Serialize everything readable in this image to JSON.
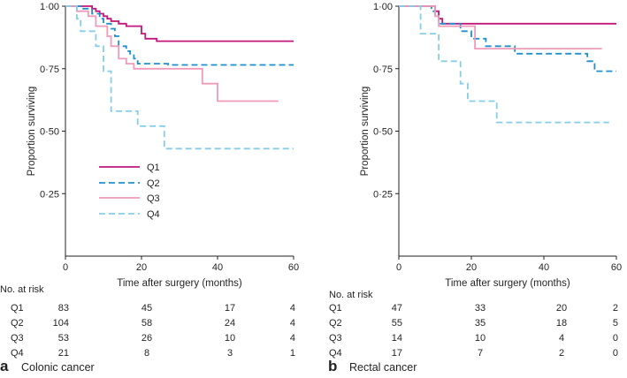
{
  "chart_data": [
    {
      "type": "line",
      "subtype": "kaplan-meier",
      "panel_letter": "a",
      "caption": "Colonic cancer",
      "xlabel": "Time after surgery (months)",
      "ylabel": "Proportion surviving",
      "xlim": [
        0,
        60
      ],
      "ylim": [
        0,
        1
      ],
      "xticks": [
        0,
        20,
        40,
        60
      ],
      "x_tick_labels": [
        "0",
        "20",
        "40",
        "60"
      ],
      "yticks": [
        0.25,
        0.5,
        0.75,
        1.0
      ],
      "y_tick_labels": [
        "0·25",
        "0·50",
        "0·75",
        "1·00"
      ],
      "legend": {
        "position": "left-center",
        "entries": [
          "Q1",
          "Q2",
          "Q3",
          "Q4"
        ]
      },
      "series": [
        {
          "name": "Q1",
          "color": "#c2167b",
          "dash": "solid",
          "points": [
            [
              0,
              1
            ],
            [
              7,
              1
            ],
            [
              7,
              0.99
            ],
            [
              8,
              0.99
            ],
            [
              8,
              0.98
            ],
            [
              9,
              0.98
            ],
            [
              9,
              0.97
            ],
            [
              10,
              0.97
            ],
            [
              10,
              0.96
            ],
            [
              11,
              0.96
            ],
            [
              11,
              0.95
            ],
            [
              12,
              0.95
            ],
            [
              12,
              0.94
            ],
            [
              14,
              0.94
            ],
            [
              14,
              0.93
            ],
            [
              16,
              0.93
            ],
            [
              16,
              0.92
            ],
            [
              20,
              0.92
            ],
            [
              20,
              0.89
            ],
            [
              21,
              0.89
            ],
            [
              21,
              0.87
            ],
            [
              24,
              0.87
            ],
            [
              24,
              0.86
            ],
            [
              60,
              0.86
            ]
          ]
        },
        {
          "name": "Q2",
          "color": "#1e90d0",
          "dash": "dashed",
          "points": [
            [
              0,
              1
            ],
            [
              4,
              1
            ],
            [
              4,
              0.99
            ],
            [
              7,
              0.99
            ],
            [
              7,
              0.97
            ],
            [
              9,
              0.97
            ],
            [
              9,
              0.95
            ],
            [
              10,
              0.95
            ],
            [
              10,
              0.93
            ],
            [
              12,
              0.93
            ],
            [
              12,
              0.91
            ],
            [
              13,
              0.91
            ],
            [
              13,
              0.88
            ],
            [
              14,
              0.88
            ],
            [
              14,
              0.84
            ],
            [
              16,
              0.84
            ],
            [
              16,
              0.82
            ],
            [
              17,
              0.82
            ],
            [
              17,
              0.81
            ],
            [
              18,
              0.81
            ],
            [
              18,
              0.79
            ],
            [
              19,
              0.79
            ],
            [
              19,
              0.77
            ],
            [
              27,
              0.77
            ],
            [
              27,
              0.765
            ],
            [
              60,
              0.765
            ]
          ]
        },
        {
          "name": "Q3",
          "color": "#ef9ab8",
          "dash": "solid",
          "points": [
            [
              0,
              1
            ],
            [
              3,
              1
            ],
            [
              3,
              0.98
            ],
            [
              6,
              0.98
            ],
            [
              6,
              0.96
            ],
            [
              8,
              0.96
            ],
            [
              8,
              0.92
            ],
            [
              11,
              0.92
            ],
            [
              11,
              0.88
            ],
            [
              12,
              0.88
            ],
            [
              12,
              0.84
            ],
            [
              14,
              0.84
            ],
            [
              14,
              0.79
            ],
            [
              16,
              0.79
            ],
            [
              16,
              0.77
            ],
            [
              18,
              0.77
            ],
            [
              18,
              0.75
            ],
            [
              36,
              0.75
            ],
            [
              36,
              0.69
            ],
            [
              40,
              0.69
            ],
            [
              40,
              0.62
            ],
            [
              56,
              0.62
            ]
          ]
        },
        {
          "name": "Q4",
          "color": "#86cde8",
          "dash": "dashed",
          "points": [
            [
              0,
              1
            ],
            [
              3,
              1
            ],
            [
              3,
              0.95
            ],
            [
              4,
              0.95
            ],
            [
              4,
              0.9
            ],
            [
              8,
              0.9
            ],
            [
              8,
              0.84
            ],
            [
              10,
              0.84
            ],
            [
              10,
              0.74
            ],
            [
              12,
              0.74
            ],
            [
              12,
              0.58
            ],
            [
              19,
              0.58
            ],
            [
              19,
              0.52
            ],
            [
              26,
              0.52
            ],
            [
              26,
              0.43
            ],
            [
              60,
              0.43
            ]
          ]
        }
      ],
      "at_risk": {
        "title": "No. at risk",
        "times": [
          0,
          20,
          40,
          60
        ],
        "rows": [
          {
            "label": "Q1",
            "counts": [
              "83",
              "45",
              "17",
              "4"
            ]
          },
          {
            "label": "Q2",
            "counts": [
              "104",
              "58",
              "24",
              "4"
            ]
          },
          {
            "label": "Q3",
            "counts": [
              "53",
              "26",
              "10",
              "4"
            ]
          },
          {
            "label": "Q4",
            "counts": [
              "21",
              "8",
              "3",
              "1"
            ]
          }
        ]
      }
    },
    {
      "type": "line",
      "subtype": "kaplan-meier",
      "panel_letter": "b",
      "caption": "Rectal cancer",
      "xlabel": "Time after surgery (months)",
      "ylabel": "Proportion surviving",
      "xlim": [
        0,
        60
      ],
      "ylim": [
        0,
        1
      ],
      "xticks": [
        0,
        20,
        40,
        60
      ],
      "x_tick_labels": [
        "0",
        "20",
        "40",
        "60"
      ],
      "yticks": [
        0.25,
        0.5,
        0.75,
        1.0
      ],
      "y_tick_labels": [
        "0·25",
        "0·50",
        "0·75",
        "1·00"
      ],
      "series": [
        {
          "name": "Q1",
          "color": "#c2167b",
          "dash": "solid",
          "points": [
            [
              0,
              1
            ],
            [
              10,
              1
            ],
            [
              10,
              0.98
            ],
            [
              11,
              0.98
            ],
            [
              11,
              0.95
            ],
            [
              12,
              0.95
            ],
            [
              12,
              0.93
            ],
            [
              60,
              0.93
            ]
          ]
        },
        {
          "name": "Q2",
          "color": "#1e90d0",
          "dash": "dashed",
          "points": [
            [
              0,
              1
            ],
            [
              9,
              1
            ],
            [
              9,
              0.98
            ],
            [
              10,
              0.98
            ],
            [
              10,
              0.96
            ],
            [
              11,
              0.96
            ],
            [
              11,
              0.93
            ],
            [
              17,
              0.93
            ],
            [
              17,
              0.9
            ],
            [
              20,
              0.9
            ],
            [
              20,
              0.87
            ],
            [
              24,
              0.87
            ],
            [
              24,
              0.84
            ],
            [
              32,
              0.84
            ],
            [
              32,
              0.81
            ],
            [
              52,
              0.81
            ],
            [
              52,
              0.78
            ],
            [
              54,
              0.78
            ],
            [
              54,
              0.74
            ],
            [
              60,
              0.74
            ]
          ]
        },
        {
          "name": "Q3",
          "color": "#ef9ab8",
          "dash": "solid",
          "points": [
            [
              0,
              1
            ],
            [
              10,
              1
            ],
            [
              10,
              0.96
            ],
            [
              11,
              0.96
            ],
            [
              11,
              0.92
            ],
            [
              21,
              0.92
            ],
            [
              21,
              0.83
            ],
            [
              56,
              0.83
            ]
          ]
        },
        {
          "name": "Q4",
          "color": "#86cde8",
          "dash": "dashed",
          "points": [
            [
              0,
              1
            ],
            [
              6,
              1
            ],
            [
              6,
              0.89
            ],
            [
              11,
              0.89
            ],
            [
              11,
              0.78
            ],
            [
              17,
              0.78
            ],
            [
              17,
              0.69
            ],
            [
              19,
              0.69
            ],
            [
              19,
              0.62
            ],
            [
              27,
              0.62
            ],
            [
              27,
              0.535
            ],
            [
              58,
              0.535
            ]
          ]
        }
      ],
      "at_risk": {
        "title": "No. at risk",
        "times": [
          0,
          20,
          40,
          60
        ],
        "rows": [
          {
            "label": "Q1",
            "counts": [
              "47",
              "33",
              "20",
              "2"
            ]
          },
          {
            "label": "Q2",
            "counts": [
              "55",
              "35",
              "18",
              "5"
            ]
          },
          {
            "label": "Q3",
            "counts": [
              "14",
              "10",
              "4",
              "0"
            ]
          },
          {
            "label": "Q4",
            "counts": [
              "17",
              "7",
              "2",
              "0"
            ]
          }
        ]
      }
    }
  ]
}
